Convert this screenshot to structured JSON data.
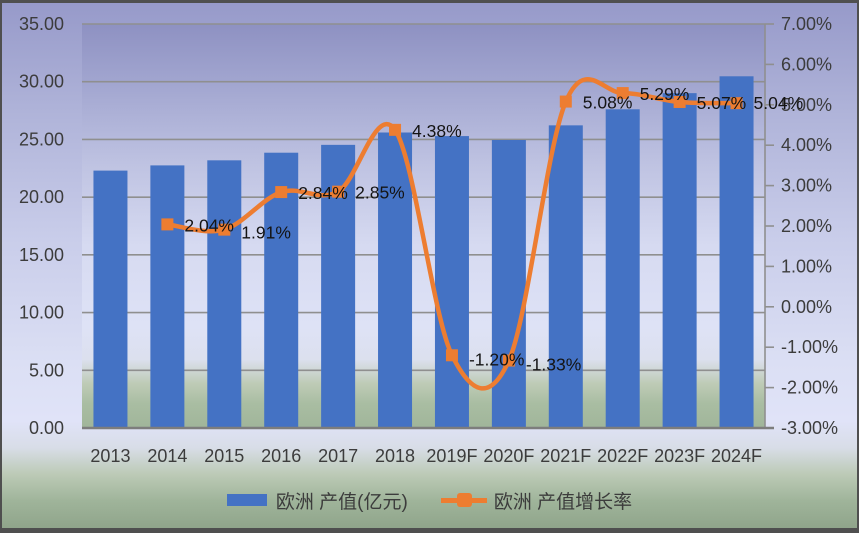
{
  "chart_data": {
    "type": "combo-bar-line",
    "categories": [
      "2013",
      "2014",
      "2015",
      "2016",
      "2017",
      "2018",
      "2019F",
      "2020F",
      "2021F",
      "2022F",
      "2023F",
      "2024F"
    ],
    "series": [
      {
        "name": "欧洲 产值(亿元)",
        "type": "bar",
        "axis": "left",
        "color": "#4472C4",
        "values": [
          22.3,
          22.75,
          23.19,
          23.85,
          24.53,
          25.6,
          25.29,
          24.95,
          26.22,
          27.61,
          29.01,
          30.47
        ]
      },
      {
        "name": "欧洲 产值增长率",
        "type": "line",
        "axis": "right",
        "color": "#ED7D31",
        "values": [
          null,
          2.04,
          1.91,
          2.84,
          2.85,
          4.38,
          -1.2,
          -1.33,
          5.08,
          5.29,
          5.07,
          5.04
        ],
        "point_labels": [
          "",
          "2.04%",
          "1.91%",
          "2.84%",
          "2.85%",
          "4.38%",
          "-1.20%",
          "-1.33%",
          "5.08%",
          "5.29%",
          "5.07%",
          "5.04%"
        ]
      }
    ],
    "left_axis": {
      "min": 0,
      "max": 35,
      "step": 5,
      "tick_labels": [
        "35.00",
        "30.00",
        "25.00",
        "20.00",
        "15.00",
        "10.00",
        "5.00",
        "0.00"
      ]
    },
    "right_axis": {
      "min": -3,
      "max": 7,
      "step": 1,
      "tick_labels": [
        "7.00%",
        "6.00%",
        "5.00%",
        "4.00%",
        "3.00%",
        "2.00%",
        "1.00%",
        "0.00%",
        "-1.00%",
        "-2.00%",
        "-3.00%"
      ]
    },
    "legend": {
      "position": "bottom",
      "items": [
        {
          "label": "欧洲 产值(亿元)",
          "marker": "bar-swatch",
          "color": "#4472C4"
        },
        {
          "label": "欧洲 产值增长率",
          "marker": "line-square",
          "color": "#ED7D31"
        }
      ]
    },
    "grid": true,
    "styles": {
      "gridline_color": "#8f8f8f",
      "baseline_color": "#7d7d7d",
      "axis_text_color": "#3c3c3c",
      "data_label_color": "#141414"
    }
  }
}
